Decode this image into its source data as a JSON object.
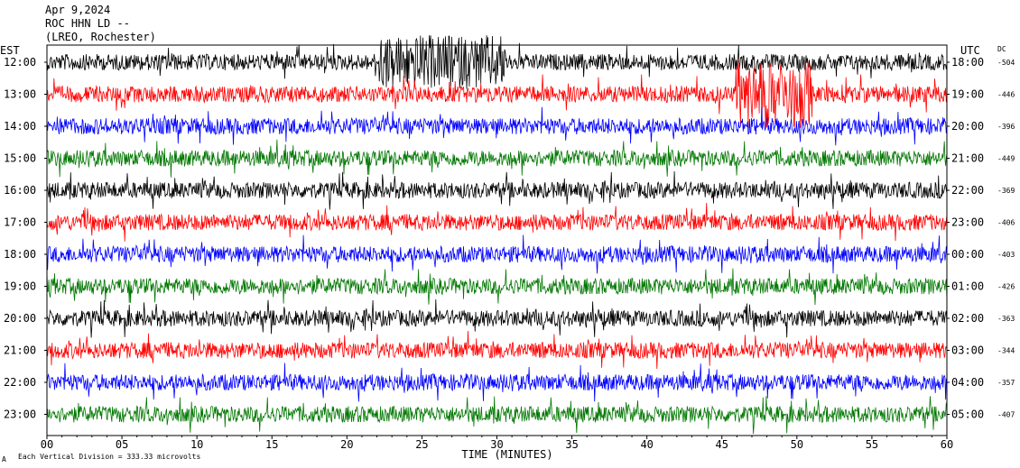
{
  "header": {
    "line1": "Apr 9,2024",
    "line2": "ROC HHN LD --",
    "line3": "(LREO, Rochester)"
  },
  "footer": {
    "mark": "A",
    "scale_note": "Each Vertical Division =  333.33 microvolts"
  },
  "chart_data": {
    "type": "line",
    "title": "",
    "xlabel": "TIME (MINUTES)",
    "ylabel_left": "EST",
    "ylabel_right": "UTC",
    "dc_header": "DC",
    "xlim": [
      0,
      60
    ],
    "x_ticks": [
      "00",
      "05",
      "10",
      "15",
      "20",
      "25",
      "30",
      "35",
      "40",
      "45",
      "50",
      "55",
      "60"
    ],
    "x_tick_values": [
      0,
      5,
      10,
      15,
      20,
      25,
      30,
      35,
      40,
      45,
      50,
      55,
      60
    ],
    "trace_colors": [
      "#000000",
      "#ff0000",
      "#0000ff",
      "#007700"
    ],
    "rows": [
      {
        "est": "12:00",
        "utc": "18:00",
        "dc": "-504"
      },
      {
        "est": "13:00",
        "utc": "19:00",
        "dc": "-446"
      },
      {
        "est": "14:00",
        "utc": "20:00",
        "dc": "-396"
      },
      {
        "est": "15:00",
        "utc": "21:00",
        "dc": "-449"
      },
      {
        "est": "16:00",
        "utc": "22:00",
        "dc": "-369"
      },
      {
        "est": "17:00",
        "utc": "23:00",
        "dc": "-406"
      },
      {
        "est": "18:00",
        "utc": "00:00",
        "dc": "-403"
      },
      {
        "est": "19:00",
        "utc": "01:00",
        "dc": "-426"
      },
      {
        "est": "20:00",
        "utc": "02:00",
        "dc": "-363"
      },
      {
        "est": "21:00",
        "utc": "03:00",
        "dc": "-344"
      },
      {
        "est": "22:00",
        "utc": "04:00",
        "dc": "-357"
      },
      {
        "est": "23:00",
        "utc": "05:00",
        "dc": "-407"
      }
    ]
  }
}
